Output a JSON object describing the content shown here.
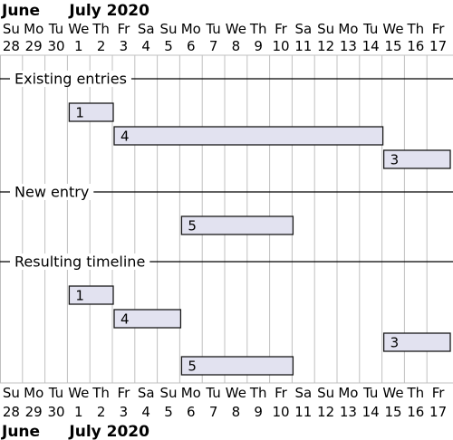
{
  "timeline": {
    "months": [
      {
        "label": "June",
        "start_day_index": 0
      },
      {
        "label": "July 2020",
        "start_day_index": 3
      }
    ],
    "days": [
      {
        "weekday": "Su",
        "date": "28"
      },
      {
        "weekday": "Mo",
        "date": "29"
      },
      {
        "weekday": "Tu",
        "date": "30"
      },
      {
        "weekday": "We",
        "date": "1"
      },
      {
        "weekday": "Th",
        "date": "2"
      },
      {
        "weekday": "Fr",
        "date": "3"
      },
      {
        "weekday": "Sa",
        "date": "4"
      },
      {
        "weekday": "Su",
        "date": "5"
      },
      {
        "weekday": "Mo",
        "date": "6"
      },
      {
        "weekday": "Tu",
        "date": "7"
      },
      {
        "weekday": "We",
        "date": "8"
      },
      {
        "weekday": "Th",
        "date": "9"
      },
      {
        "weekday": "Fr",
        "date": "10"
      },
      {
        "weekday": "Sa",
        "date": "11"
      },
      {
        "weekday": "Su",
        "date": "12"
      },
      {
        "weekday": "Mo",
        "date": "13"
      },
      {
        "weekday": "Tu",
        "date": "14"
      },
      {
        "weekday": "We",
        "date": "15"
      },
      {
        "weekday": "Th",
        "date": "16"
      },
      {
        "weekday": "Fr",
        "date": "17"
      }
    ]
  },
  "sections": [
    {
      "label": "Existing entries",
      "bars": [
        {
          "label": "1",
          "start_day_index": 3,
          "end_day_index": 4
        },
        {
          "label": "4",
          "start_day_index": 5,
          "end_day_index": 16
        },
        {
          "label": "3",
          "start_day_index": 17,
          "end_day_index": 19
        }
      ]
    },
    {
      "label": "New entry",
      "bars": [
        {
          "label": "5",
          "start_day_index": 8,
          "end_day_index": 12
        }
      ]
    },
    {
      "label": "Resulting timeline",
      "bars": [
        {
          "label": "1",
          "start_day_index": 3,
          "end_day_index": 4
        },
        {
          "label": "4",
          "start_day_index": 5,
          "end_day_index": 7
        },
        {
          "label": "3",
          "start_day_index": 17,
          "end_day_index": 19
        },
        {
          "label": "5",
          "start_day_index": 8,
          "end_day_index": 12
        }
      ]
    }
  ],
  "colors": {
    "bar_fill": "#e2e2f0",
    "bar_stroke": "#181818",
    "grid": "#c0c0c0",
    "separator": "#000000",
    "text": "#000000"
  }
}
